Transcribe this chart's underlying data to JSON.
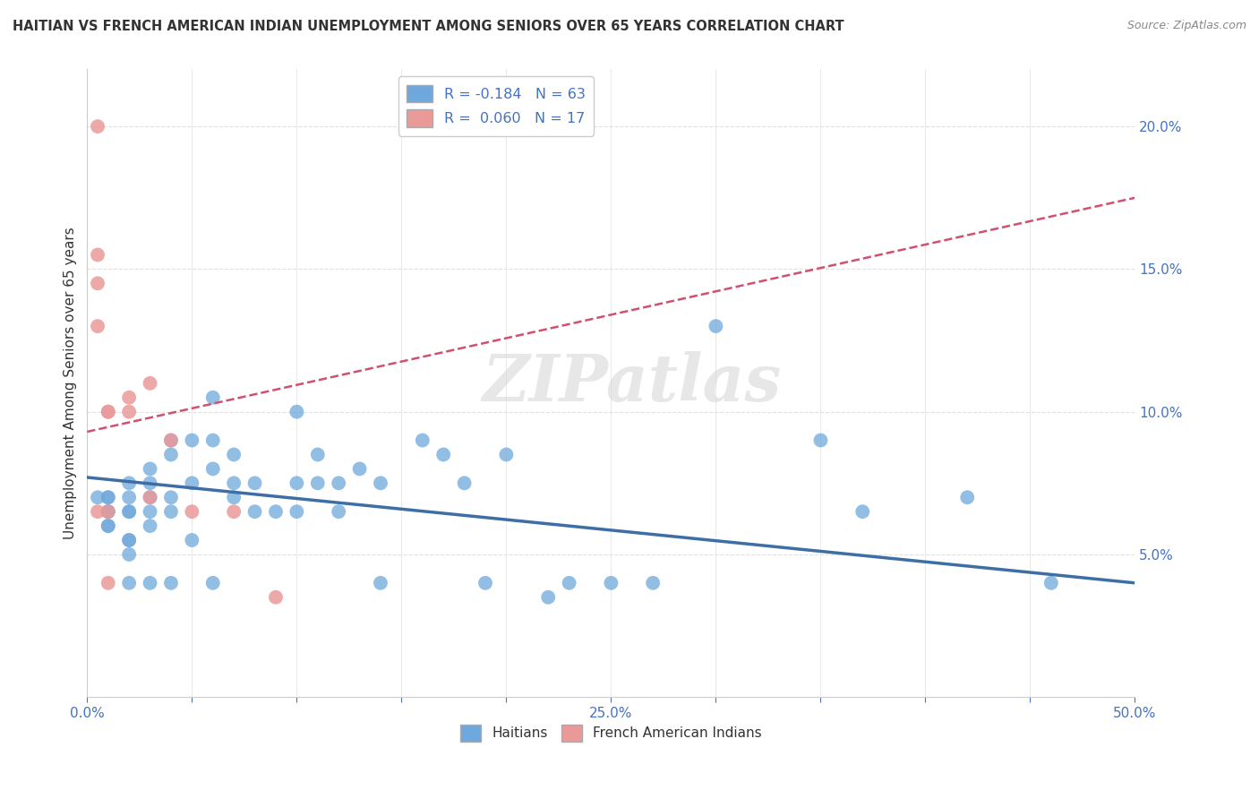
{
  "title": "HAITIAN VS FRENCH AMERICAN INDIAN UNEMPLOYMENT AMONG SENIORS OVER 65 YEARS CORRELATION CHART",
  "source": "Source: ZipAtlas.com",
  "ylabel": "Unemployment Among Seniors over 65 years",
  "xlim": [
    0.0,
    0.5
  ],
  "ylim": [
    0.0,
    0.22
  ],
  "xticks": [
    0.0,
    0.05,
    0.1,
    0.15,
    0.2,
    0.25,
    0.3,
    0.35,
    0.4,
    0.45,
    0.5
  ],
  "xtick_labels": [
    "0.0%",
    "",
    "",
    "",
    "",
    "25.0%",
    "",
    "",
    "",
    "",
    "50.0%"
  ],
  "yticks_right": [
    0.05,
    0.1,
    0.15,
    0.2
  ],
  "ytick_labels_right": [
    "5.0%",
    "10.0%",
    "15.0%",
    "20.0%"
  ],
  "blue_color": "#6fa8dc",
  "pink_color": "#ea9999",
  "blue_line_color": "#3d6fa5",
  "pink_line_color": "#d05070",
  "legend_text_color": "#4472c4",
  "legend_R_blue": "R = -0.184",
  "legend_N_blue": "N = 63",
  "legend_R_pink": "R =  0.060",
  "legend_N_pink": "N = 17",
  "blue_scatter_x": [
    0.005,
    0.01,
    0.01,
    0.01,
    0.01,
    0.01,
    0.01,
    0.02,
    0.02,
    0.02,
    0.02,
    0.02,
    0.02,
    0.02,
    0.02,
    0.03,
    0.03,
    0.03,
    0.03,
    0.03,
    0.03,
    0.04,
    0.04,
    0.04,
    0.04,
    0.04,
    0.05,
    0.05,
    0.05,
    0.06,
    0.06,
    0.06,
    0.06,
    0.07,
    0.07,
    0.07,
    0.08,
    0.08,
    0.09,
    0.1,
    0.1,
    0.1,
    0.11,
    0.11,
    0.12,
    0.12,
    0.13,
    0.14,
    0.14,
    0.16,
    0.17,
    0.18,
    0.19,
    0.2,
    0.22,
    0.23,
    0.25,
    0.27,
    0.3,
    0.35,
    0.37,
    0.42,
    0.46
  ],
  "blue_scatter_y": [
    0.07,
    0.07,
    0.07,
    0.065,
    0.065,
    0.06,
    0.06,
    0.075,
    0.07,
    0.065,
    0.065,
    0.055,
    0.055,
    0.05,
    0.04,
    0.08,
    0.075,
    0.07,
    0.065,
    0.06,
    0.04,
    0.09,
    0.085,
    0.07,
    0.065,
    0.04,
    0.09,
    0.075,
    0.055,
    0.105,
    0.09,
    0.08,
    0.04,
    0.085,
    0.075,
    0.07,
    0.075,
    0.065,
    0.065,
    0.1,
    0.075,
    0.065,
    0.085,
    0.075,
    0.075,
    0.065,
    0.08,
    0.075,
    0.04,
    0.09,
    0.085,
    0.075,
    0.04,
    0.085,
    0.035,
    0.04,
    0.04,
    0.04,
    0.13,
    0.09,
    0.065,
    0.07,
    0.04
  ],
  "pink_scatter_x": [
    0.005,
    0.005,
    0.005,
    0.005,
    0.005,
    0.01,
    0.01,
    0.01,
    0.01,
    0.02,
    0.02,
    0.03,
    0.03,
    0.04,
    0.05,
    0.07,
    0.09
  ],
  "pink_scatter_y": [
    0.2,
    0.155,
    0.145,
    0.13,
    0.065,
    0.1,
    0.1,
    0.065,
    0.04,
    0.105,
    0.1,
    0.11,
    0.07,
    0.09,
    0.065,
    0.065,
    0.035
  ],
  "blue_line_x": [
    0.0,
    0.5
  ],
  "blue_line_y": [
    0.077,
    0.04
  ],
  "pink_line_x": [
    0.0,
    0.5
  ],
  "pink_line_y": [
    0.093,
    0.175
  ],
  "watermark": "ZIPatlas",
  "background_color": "#ffffff",
  "grid_color": "#e0e0e0"
}
